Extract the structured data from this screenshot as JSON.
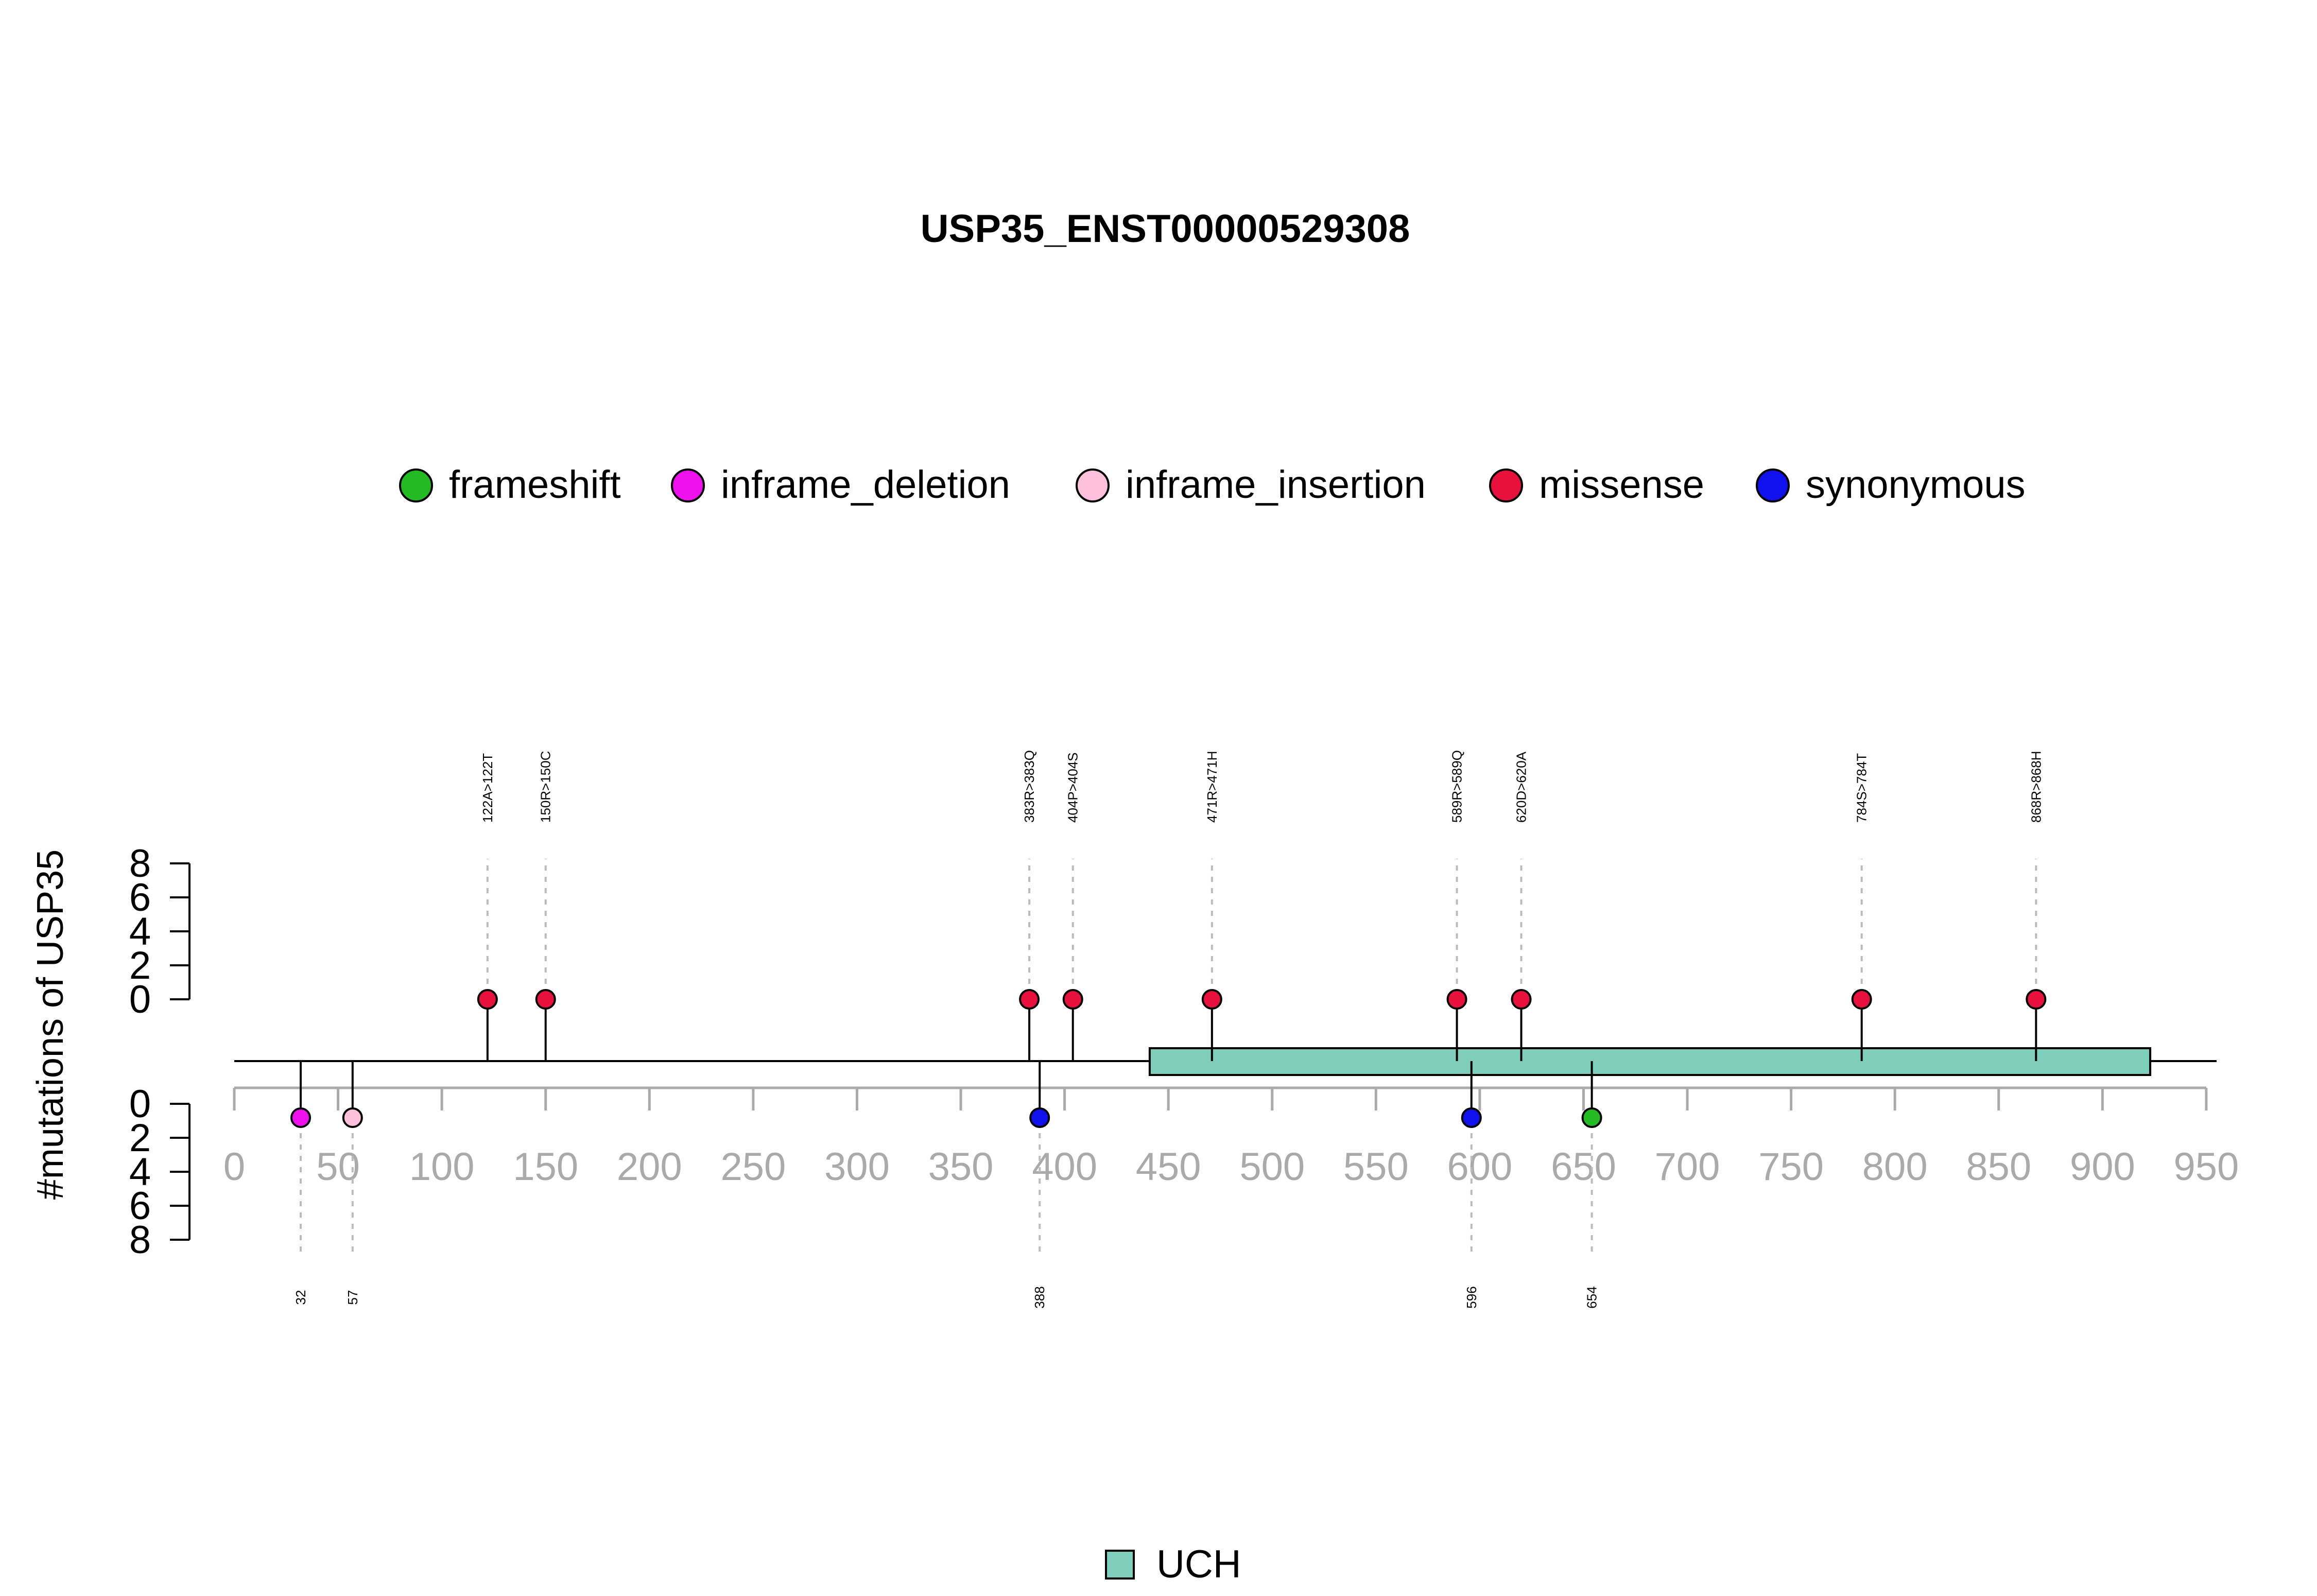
{
  "chart_data": {
    "type": "lollipop",
    "title": "USP35_ENST00000529308",
    "ylabel": "#mutations of USP35",
    "xlim": [
      0,
      950
    ],
    "x_ticks": [
      0,
      50,
      100,
      150,
      200,
      250,
      300,
      350,
      400,
      450,
      500,
      550,
      600,
      650,
      700,
      750,
      800,
      850,
      900,
      950
    ],
    "y_upper_ticks": [
      0,
      2,
      4,
      6,
      8
    ],
    "y_lower_ticks": [
      0,
      2,
      4,
      6,
      8
    ],
    "y_range": [
      0,
      8
    ],
    "legend": [
      {
        "label": "frameshift",
        "color": "#22BB22"
      },
      {
        "label": "inframe_deletion",
        "color": "#EE11EE"
      },
      {
        "label": "inframe_insertion",
        "color": "#FFC0DC"
      },
      {
        "label": "missense",
        "color": "#E8103C"
      },
      {
        "label": "synonymous",
        "color": "#1111EE"
      }
    ],
    "domains": [
      {
        "name": "UCH",
        "start": 441,
        "end": 923,
        "color": "#7FCDBB"
      }
    ],
    "protein_length": 1000,
    "upper_mutations": [
      {
        "pos": 122,
        "label": "122A>122T",
        "type": "missense",
        "count": 1
      },
      {
        "pos": 150,
        "label": "150R>150C",
        "type": "missense",
        "count": 1
      },
      {
        "pos": 383,
        "label": "383R>383Q",
        "type": "missense",
        "count": 1
      },
      {
        "pos": 404,
        "label": "404P>404S",
        "type": "missense",
        "count": 1
      },
      {
        "pos": 471,
        "label": "471R>471H",
        "type": "missense",
        "count": 1
      },
      {
        "pos": 589,
        "label": "589R>589Q",
        "type": "missense",
        "count": 1
      },
      {
        "pos": 620,
        "label": "620D>620A",
        "type": "missense",
        "count": 1
      },
      {
        "pos": 784,
        "label": "784S>784T",
        "type": "missense",
        "count": 1
      },
      {
        "pos": 868,
        "label": "868R>868H",
        "type": "missense",
        "count": 1
      }
    ],
    "lower_mutations": [
      {
        "pos": 32,
        "label": "32",
        "type": "inframe_deletion",
        "count": 1
      },
      {
        "pos": 57,
        "label": "57",
        "type": "inframe_insertion",
        "count": 1
      },
      {
        "pos": 388,
        "label": "388",
        "type": "synonymous",
        "count": 1
      },
      {
        "pos": 596,
        "label": "596",
        "type": "synonymous",
        "count": 1
      },
      {
        "pos": 654,
        "label": "654",
        "type": "frameshift",
        "count": 1
      }
    ],
    "domain_legend_label": "UCH"
  }
}
